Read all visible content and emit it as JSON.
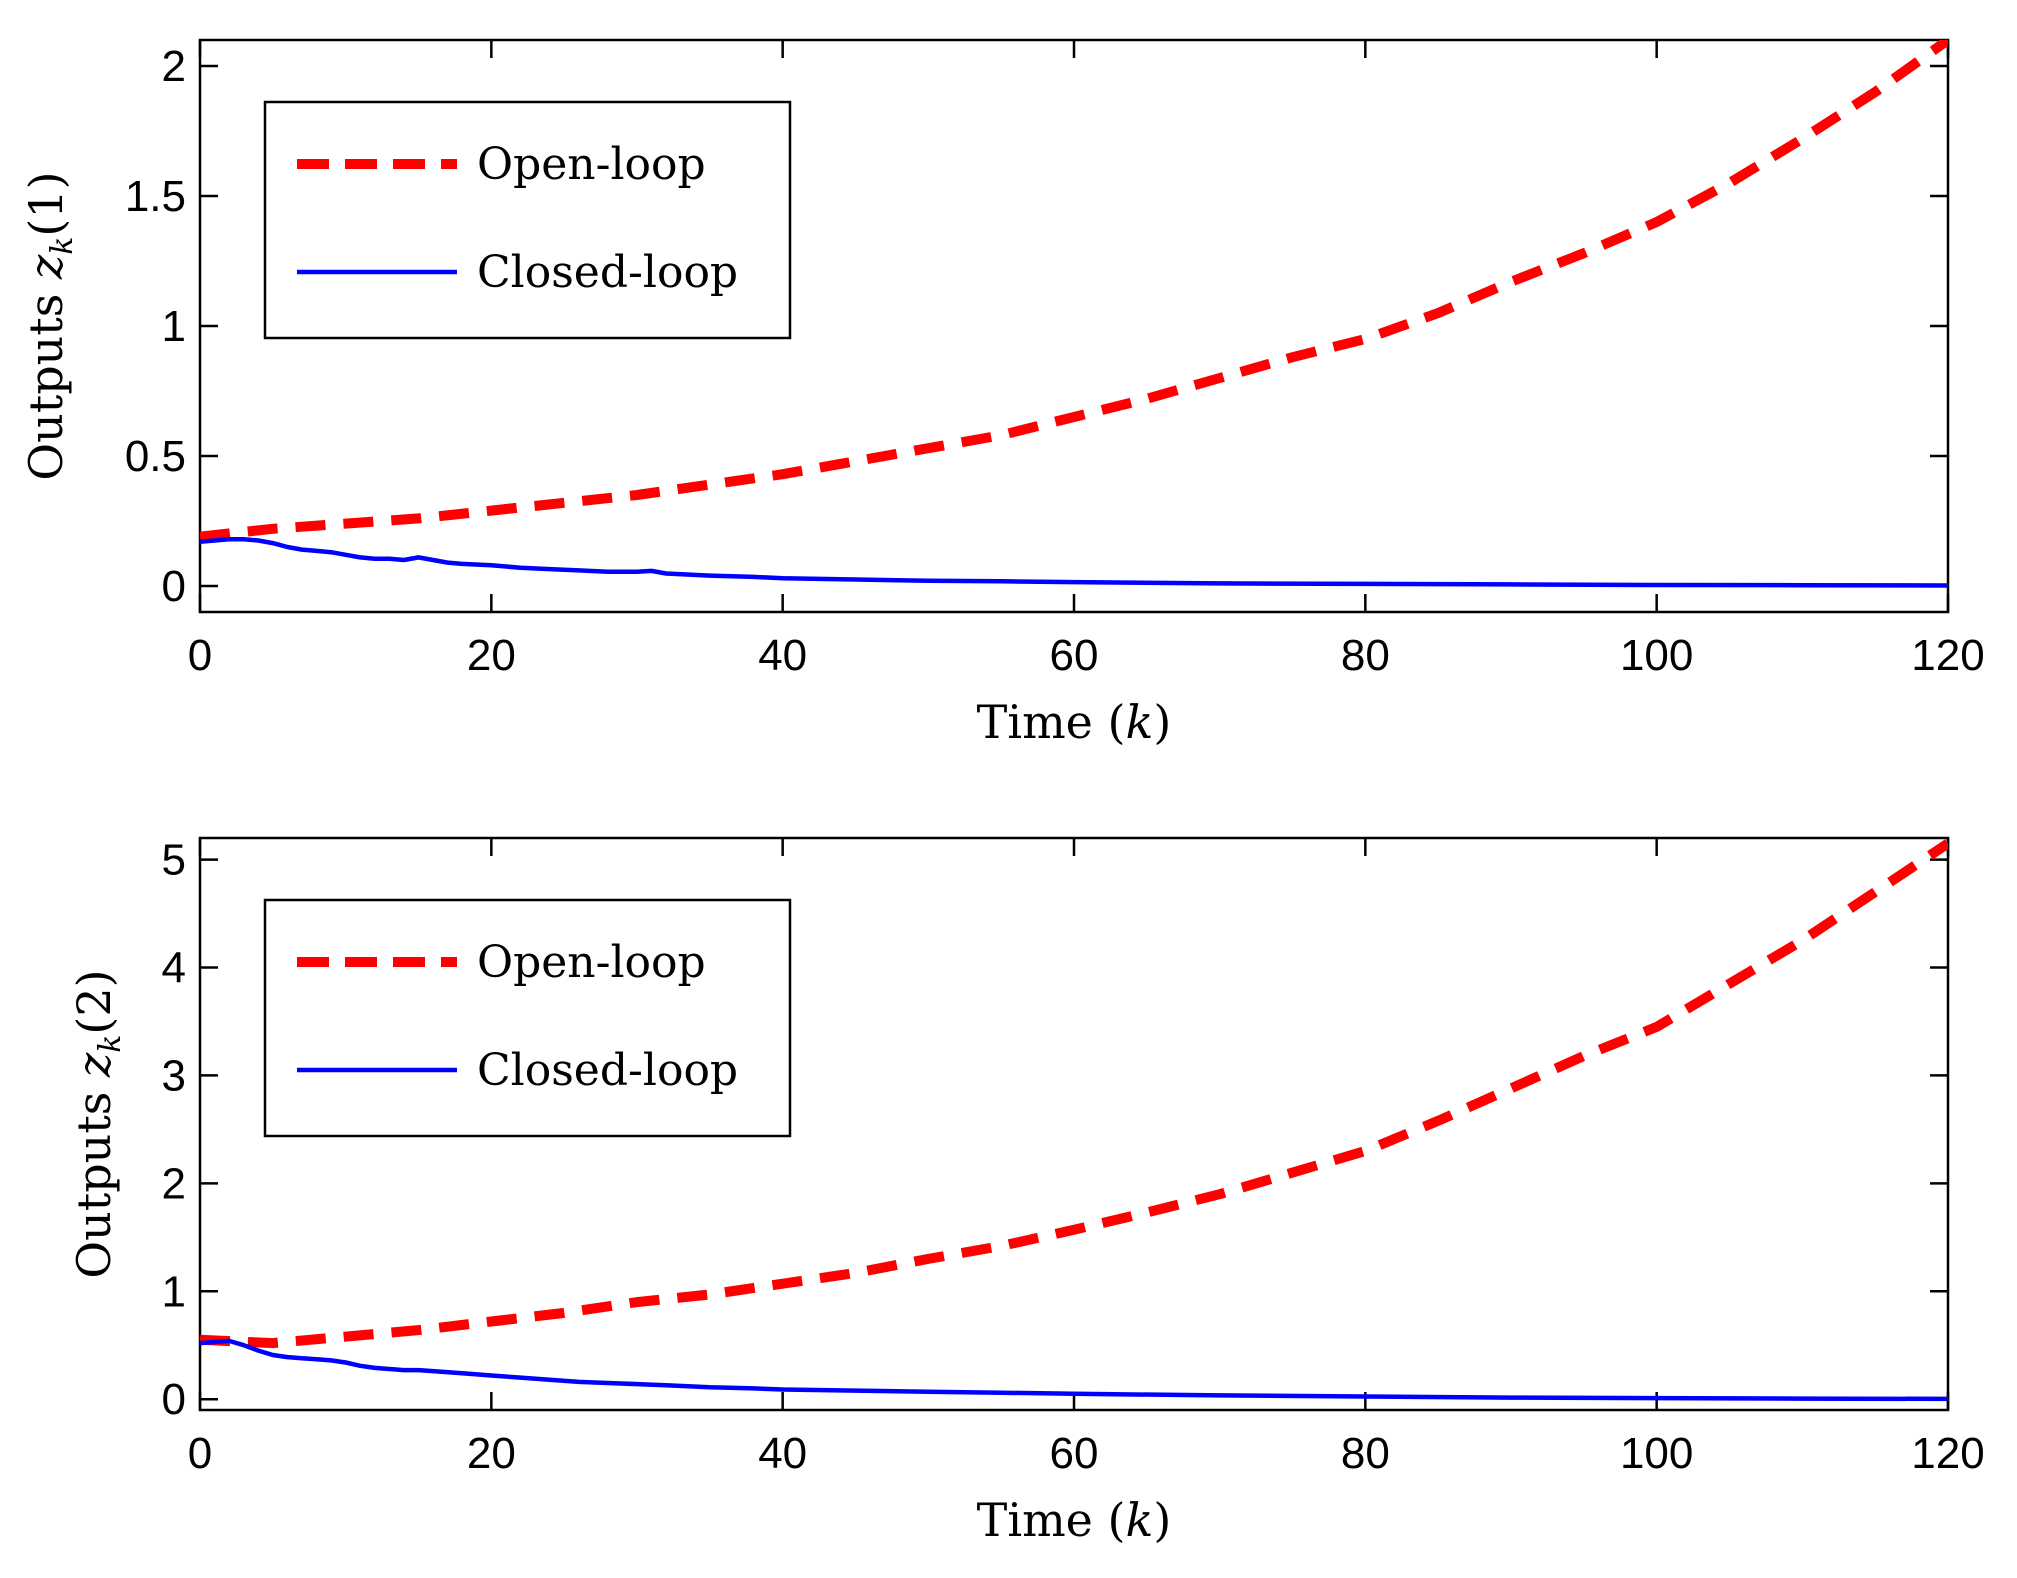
{
  "chart_data": [
    {
      "type": "line",
      "title": "",
      "xlabel": "Time (k)",
      "xlabel_parts": {
        "prefix": "Time (",
        "var": "k",
        "suffix": ")"
      },
      "ylabel": "Outputs z_k(1)",
      "ylabel_parts": {
        "prefix": "Outputs ",
        "var": "z",
        "sub": "k",
        "arg": "(1)"
      },
      "xlim": [
        0,
        120
      ],
      "ylim": [
        -0.1,
        2.1
      ],
      "xticks": [
        0,
        20,
        40,
        60,
        80,
        100,
        120
      ],
      "xtick_labels": [
        "0",
        "20",
        "40",
        "60",
        "80",
        "100",
        "120"
      ],
      "yticks": [
        0,
        0.5,
        1,
        1.5,
        2
      ],
      "ytick_labels": [
        "0",
        "0.5",
        "1",
        "1.5",
        "2"
      ],
      "grid": false,
      "legend_position": "top-left",
      "series": [
        {
          "name": "Open-loop",
          "style": "dashed",
          "color": "#ff0000",
          "x": [
            0,
            5,
            10,
            15,
            20,
            25,
            30,
            35,
            40,
            45,
            50,
            55,
            60,
            65,
            70,
            75,
            80,
            85,
            90,
            95,
            100,
            105,
            110,
            115,
            120
          ],
          "y": [
            0.19,
            0.22,
            0.24,
            0.26,
            0.29,
            0.32,
            0.35,
            0.39,
            0.43,
            0.48,
            0.53,
            0.58,
            0.65,
            0.72,
            0.8,
            0.88,
            0.95,
            1.05,
            1.17,
            1.28,
            1.4,
            1.55,
            1.72,
            1.9,
            2.1
          ]
        },
        {
          "name": "Closed-loop",
          "style": "solid",
          "color": "#0000ff",
          "x": [
            0,
            1,
            2,
            3,
            4,
            5,
            6,
            7,
            8,
            9,
            10,
            11,
            12,
            13,
            14,
            15,
            16,
            17,
            18,
            20,
            22,
            24,
            26,
            28,
            30,
            31,
            32,
            35,
            38,
            40,
            45,
            50,
            55,
            60,
            70,
            80,
            90,
            100,
            110,
            120
          ],
          "y": [
            0.17,
            0.175,
            0.18,
            0.18,
            0.175,
            0.165,
            0.15,
            0.14,
            0.135,
            0.13,
            0.12,
            0.11,
            0.105,
            0.105,
            0.1,
            0.11,
            0.1,
            0.09,
            0.085,
            0.08,
            0.07,
            0.065,
            0.06,
            0.055,
            0.055,
            0.058,
            0.048,
            0.04,
            0.035,
            0.03,
            0.025,
            0.02,
            0.018,
            0.015,
            0.01,
            0.008,
            0.006,
            0.004,
            0.003,
            0.002
          ]
        }
      ]
    },
    {
      "type": "line",
      "title": "",
      "xlabel": "Time (k)",
      "xlabel_parts": {
        "prefix": "Time (",
        "var": "k",
        "suffix": ")"
      },
      "ylabel": "Outputs z_k(2)",
      "ylabel_parts": {
        "prefix": "Outputs ",
        "var": "z",
        "sub": "k",
        "arg": "(2)"
      },
      "xlim": [
        0,
        120
      ],
      "ylim": [
        -0.1,
        5.2
      ],
      "xticks": [
        0,
        20,
        40,
        60,
        80,
        100,
        120
      ],
      "xtick_labels": [
        "0",
        "20",
        "40",
        "60",
        "80",
        "100",
        "120"
      ],
      "yticks": [
        0,
        1,
        2,
        3,
        4,
        5
      ],
      "ytick_labels": [
        "0",
        "1",
        "2",
        "3",
        "4",
        "5"
      ],
      "grid": false,
      "legend_position": "top-left",
      "series": [
        {
          "name": "Open-loop",
          "style": "dashed",
          "color": "#ff0000",
          "x": [
            0,
            5,
            10,
            15,
            20,
            25,
            30,
            35,
            40,
            45,
            50,
            55,
            60,
            65,
            70,
            75,
            80,
            85,
            90,
            95,
            100,
            105,
            110,
            115,
            120
          ],
          "y": [
            0.55,
            0.52,
            0.58,
            0.64,
            0.72,
            0.8,
            0.9,
            0.97,
            1.07,
            1.17,
            1.3,
            1.42,
            1.57,
            1.73,
            1.9,
            2.1,
            2.3,
            2.58,
            2.88,
            3.18,
            3.45,
            3.85,
            4.25,
            4.7,
            5.15
          ]
        },
        {
          "name": "Closed-loop",
          "style": "solid",
          "color": "#0000ff",
          "x": [
            0,
            1,
            2,
            3,
            4,
            5,
            6,
            7,
            8,
            9,
            10,
            11,
            12,
            13,
            14,
            15,
            16,
            18,
            20,
            22,
            24,
            26,
            28,
            30,
            32,
            35,
            38,
            40,
            45,
            50,
            55,
            60,
            70,
            80,
            90,
            100,
            110,
            120
          ],
          "y": [
            0.52,
            0.53,
            0.54,
            0.5,
            0.45,
            0.41,
            0.39,
            0.38,
            0.37,
            0.36,
            0.34,
            0.31,
            0.29,
            0.28,
            0.27,
            0.27,
            0.26,
            0.24,
            0.22,
            0.2,
            0.18,
            0.16,
            0.15,
            0.14,
            0.13,
            0.11,
            0.1,
            0.09,
            0.08,
            0.07,
            0.06,
            0.05,
            0.035,
            0.025,
            0.015,
            0.01,
            0.006,
            0.003
          ]
        }
      ]
    }
  ]
}
